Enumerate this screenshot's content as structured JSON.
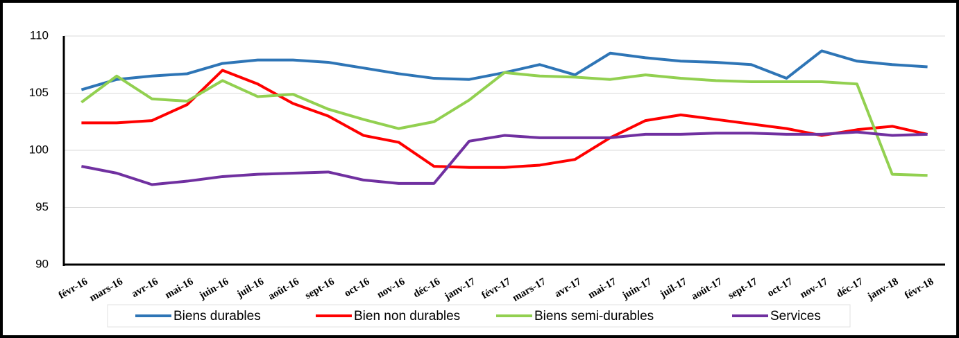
{
  "chart_data": {
    "type": "line",
    "categories": [
      "févr-16",
      "mars-16",
      "avr-16",
      "mai-16",
      "juin-16",
      "juil-16",
      "août-16",
      "sept-16",
      "oct-16",
      "nov-16",
      "déc-16",
      "janv-17",
      "févr-17",
      "mars-17",
      "avr-17",
      "mai-17",
      "juin-17",
      "juil-17",
      "août-17",
      "sept-17",
      "oct-17",
      "nov-17",
      "déc-17",
      "janv-18",
      "févr-18"
    ],
    "series": [
      {
        "name": "Biens durables",
        "color": "#2e75b6",
        "values": [
          105.3,
          106.2,
          106.5,
          106.7,
          107.6,
          107.9,
          107.9,
          107.7,
          107.2,
          106.7,
          106.3,
          106.2,
          106.8,
          107.5,
          106.6,
          108.5,
          108.1,
          107.8,
          107.7,
          107.5,
          106.3,
          108.7,
          107.8,
          107.5,
          107.3
        ]
      },
      {
        "name": "Bien non durables",
        "color": "#ff0000",
        "values": [
          102.4,
          102.4,
          102.6,
          104.0,
          107.0,
          105.8,
          104.1,
          103.0,
          101.3,
          100.7,
          98.6,
          98.5,
          98.5,
          98.7,
          99.2,
          101.1,
          102.6,
          103.1,
          102.7,
          102.3,
          101.9,
          101.3,
          101.8,
          102.1,
          101.4
        ]
      },
      {
        "name": "Biens semi-durables",
        "color": "#92d050",
        "values": [
          104.2,
          106.5,
          104.5,
          104.3,
          106.1,
          104.7,
          104.9,
          103.6,
          102.7,
          101.9,
          102.5,
          104.4,
          106.8,
          106.5,
          106.4,
          106.2,
          106.6,
          106.3,
          106.1,
          106.0,
          106.0,
          106.0,
          105.8,
          97.9,
          97.8
        ]
      },
      {
        "name": "Services",
        "color": "#7030a0",
        "values": [
          98.6,
          98.0,
          97.0,
          97.3,
          97.7,
          97.9,
          98.0,
          98.1,
          97.4,
          97.1,
          97.1,
          100.8,
          101.3,
          101.1,
          101.1,
          101.1,
          101.4,
          101.4,
          101.5,
          101.5,
          101.4,
          101.4,
          101.6,
          101.3,
          101.4
        ]
      }
    ],
    "ylim": [
      90,
      110
    ],
    "yticks": [
      90,
      95,
      100,
      105,
      110
    ],
    "grid": true
  }
}
